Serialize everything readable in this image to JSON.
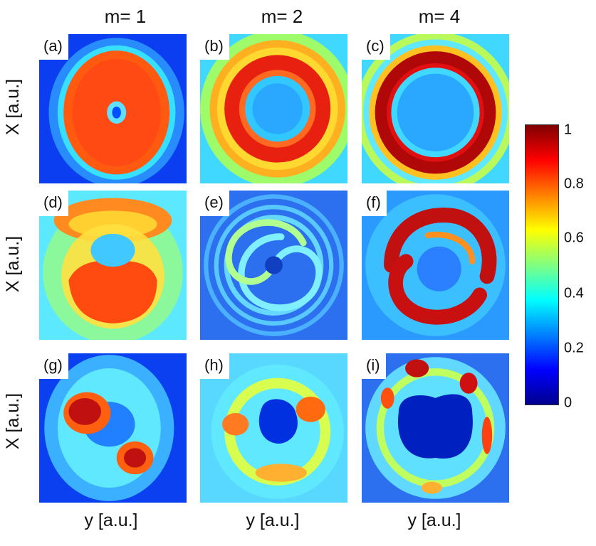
{
  "columns": [
    "m= 1",
    "m= 2",
    "m= 4"
  ],
  "y_axis_label": "X [a.u.]",
  "x_axis_label": "y [a.u.]",
  "panels": [
    {
      "label": "(a)",
      "row": 0,
      "col": 0
    },
    {
      "label": "(b)",
      "row": 0,
      "col": 1
    },
    {
      "label": "(c)",
      "row": 0,
      "col": 2
    },
    {
      "label": "(d)",
      "row": 1,
      "col": 0
    },
    {
      "label": "(e)",
      "row": 1,
      "col": 1
    },
    {
      "label": "(f)",
      "row": 1,
      "col": 2
    },
    {
      "label": "(g)",
      "row": 2,
      "col": 0
    },
    {
      "label": "(h)",
      "row": 2,
      "col": 1
    },
    {
      "label": "(i)",
      "row": 2,
      "col": 2
    }
  ],
  "colorbar": {
    "ticks": [
      "1",
      "0.8",
      "0.6",
      "0.4",
      "0.2",
      "0"
    ],
    "colormap": "jet",
    "range": [
      0,
      1
    ]
  }
}
